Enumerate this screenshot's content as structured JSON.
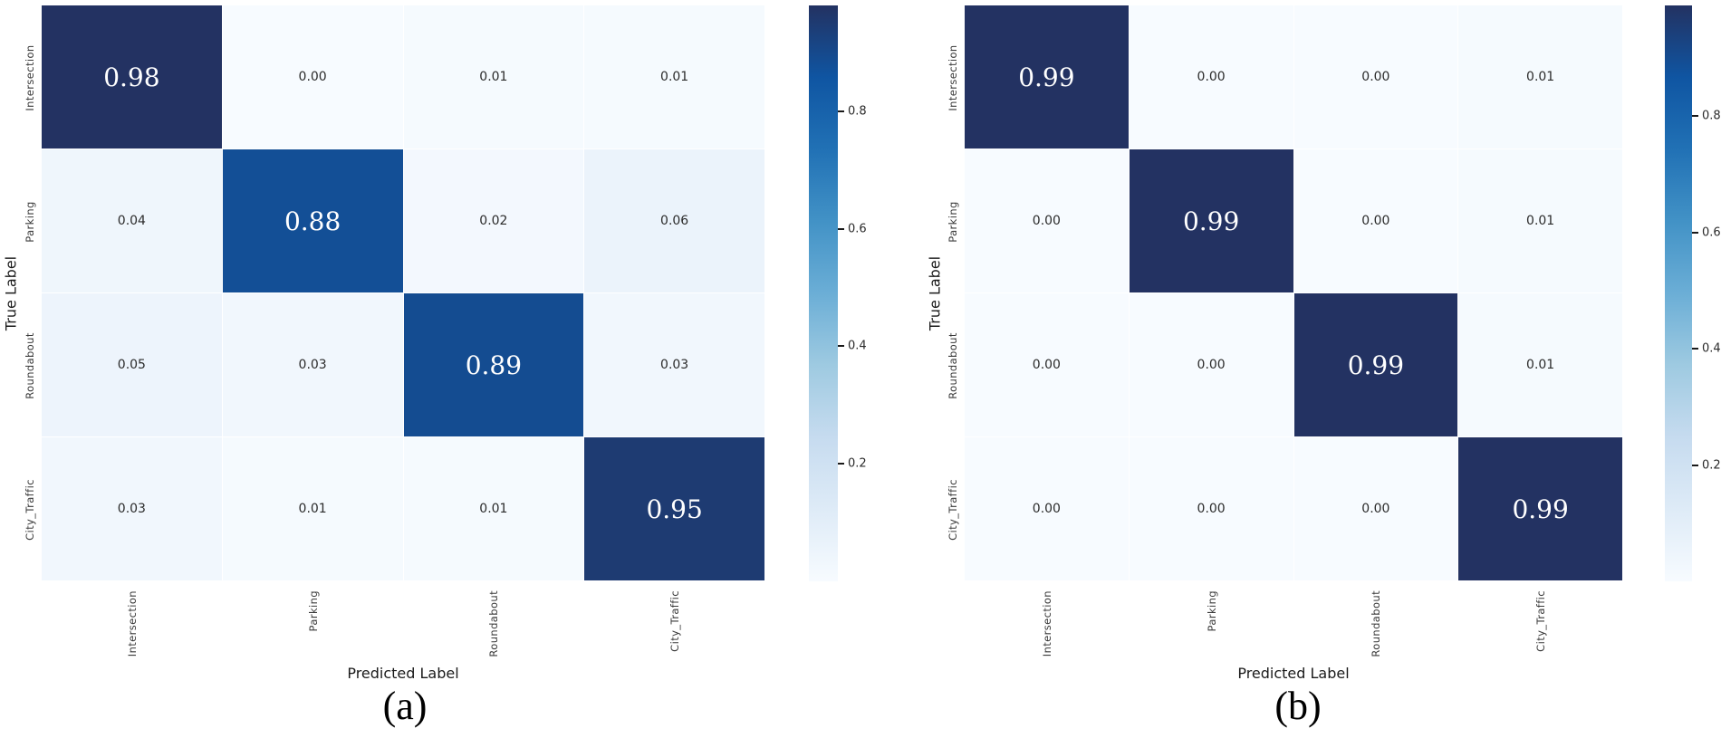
{
  "figure": {
    "background": "#ffffff",
    "description": "Two normalized confusion-matrix heatmaps"
  },
  "colors": {
    "colormap_stops": [
      {
        "t": 0.0,
        "color": "#f7fbff"
      },
      {
        "t": 0.125,
        "color": "#deebf7"
      },
      {
        "t": 0.25,
        "color": "#c6dbef"
      },
      {
        "t": 0.375,
        "color": "#9ecae1"
      },
      {
        "t": 0.5,
        "color": "#6baed6"
      },
      {
        "t": 0.625,
        "color": "#4292c6"
      },
      {
        "t": 0.75,
        "color": "#2171b5"
      },
      {
        "t": 0.875,
        "color": "#0f55a2"
      },
      {
        "t": 1.0,
        "color": "#233262"
      }
    ],
    "diag_text": "#ffffff",
    "offdiag_text": "#2b2b2b",
    "tick_text": "#3a3a3a",
    "axis_title_text": "#1a1a1a"
  },
  "chart_data": [
    {
      "type": "heatmap",
      "panel_label": "(a)",
      "xlabel": "Predicted Label",
      "ylabel": "True Label",
      "x_categories": [
        "Intersection",
        "Parking",
        "Roundabout",
        "City_Traffic"
      ],
      "y_categories": [
        "Intersection",
        "Parking",
        "Roundabout",
        "City_Traffic"
      ],
      "matrix": [
        [
          0.98,
          0.0,
          0.01,
          0.01
        ],
        [
          0.04,
          0.88,
          0.02,
          0.06
        ],
        [
          0.05,
          0.03,
          0.89,
          0.03
        ],
        [
          0.03,
          0.01,
          0.01,
          0.95
        ]
      ],
      "vmin": 0.0,
      "vmax": 0.98,
      "colorbar_ticks": [
        0.8,
        0.6,
        0.4,
        0.2
      ],
      "legend_position": "right"
    },
    {
      "type": "heatmap",
      "panel_label": "(b)",
      "xlabel": "Predicted Label",
      "ylabel": "True Label",
      "x_categories": [
        "Intersection",
        "Parking",
        "Roundabout",
        "City_Traffic"
      ],
      "y_categories": [
        "Intersection",
        "Parking",
        "Roundabout",
        "City_Traffic"
      ],
      "matrix": [
        [
          0.99,
          0.0,
          0.0,
          0.01
        ],
        [
          0.0,
          0.99,
          0.0,
          0.01
        ],
        [
          0.0,
          0.0,
          0.99,
          0.01
        ],
        [
          0.0,
          0.0,
          0.0,
          0.99
        ]
      ],
      "vmin": 0.0,
      "vmax": 0.99,
      "colorbar_ticks": [
        0.8,
        0.6,
        0.4,
        0.2
      ],
      "legend_position": "right"
    }
  ]
}
